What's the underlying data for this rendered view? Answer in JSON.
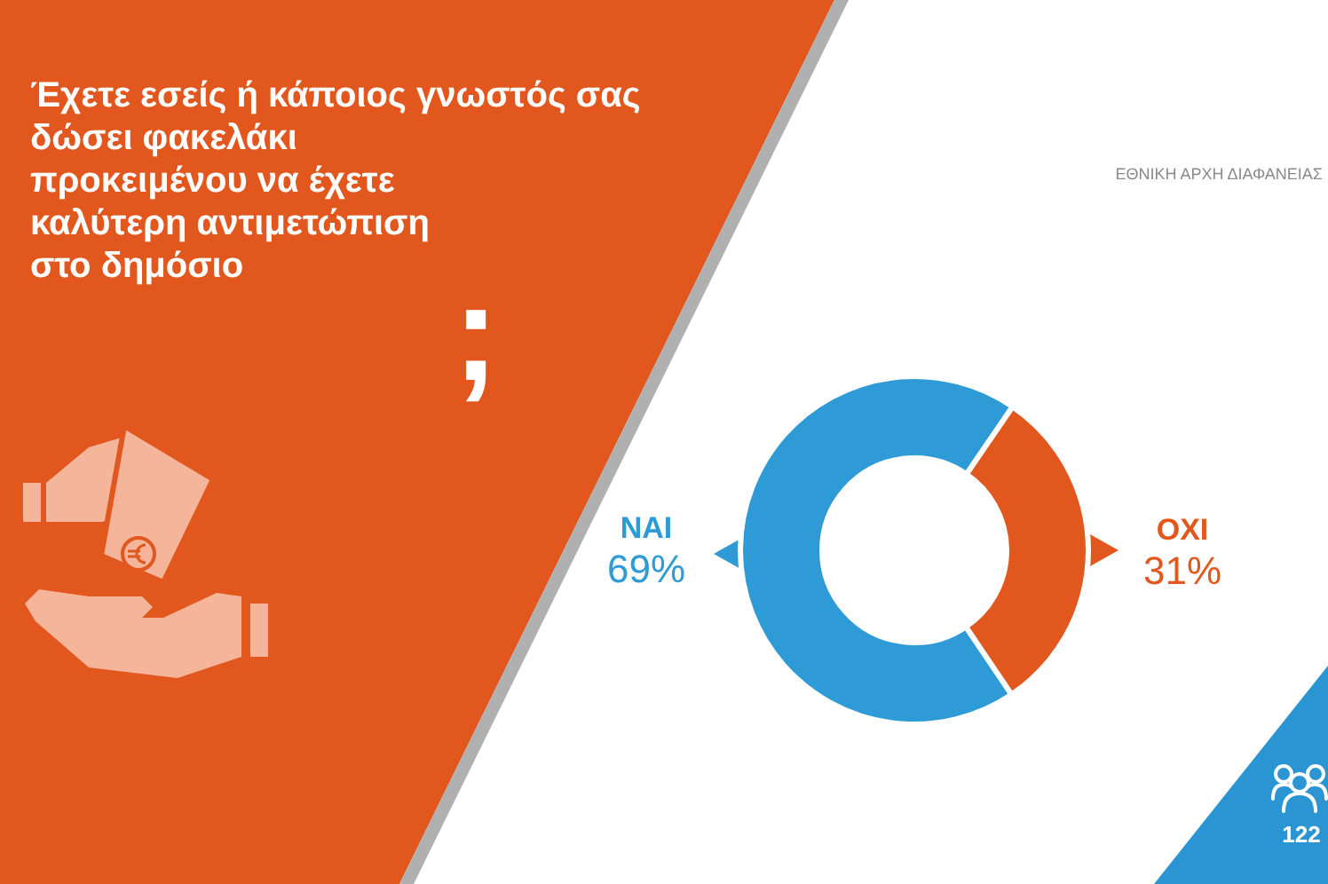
{
  "chart_data": {
    "type": "donut",
    "title": "Έχετε εσείς ή κάποιος γνωστός σας\nδώσει φακελάκι\nπροκειμένου να έχετε\nκαλύτερη αντιμετώπιση\nστο δημόσιο",
    "categories": [
      "ΝΑΙ",
      "ΟΧΙ"
    ],
    "values": [
      69,
      31
    ],
    "colors": [
      "#2e9bd6",
      "#e2571e"
    ],
    "value_labels": [
      "69%",
      "31%"
    ],
    "annotations": [
      ";",
      "ΕΘΝΙΚΗ ΑΡΧΗ ΔΙΑΦΑΝΕΙΑΣ",
      "122"
    ]
  }
}
